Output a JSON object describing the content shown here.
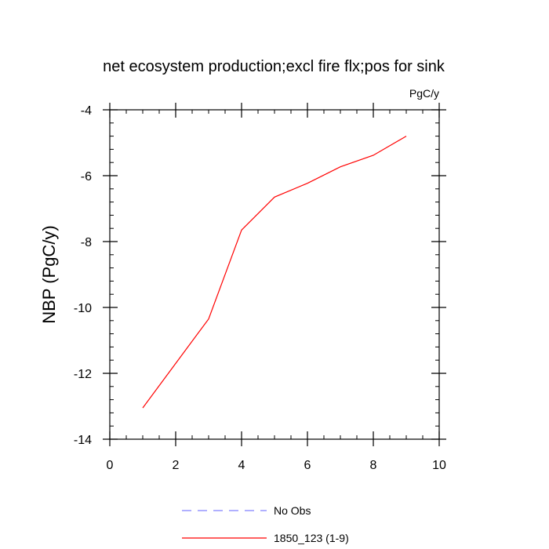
{
  "chart_data": {
    "type": "line",
    "title": "net ecosystem production;excl fire flx;pos for sink",
    "units_label": "PgC/y",
    "xlabel": "",
    "ylabel": "NBP  (PgC/y)",
    "xlim": [
      0,
      10
    ],
    "ylim": [
      -14,
      -4
    ],
    "x_ticks": [
      0,
      2,
      4,
      6,
      8,
      10
    ],
    "x_tick_labels": [
      "0",
      "2",
      "4",
      "6",
      "8",
      "10"
    ],
    "y_ticks": [
      -14,
      -12,
      -10,
      -8,
      -6,
      -4
    ],
    "y_tick_labels": [
      "-14",
      "-12",
      "-10",
      "-8",
      "-6",
      "-4"
    ],
    "x_minor_step": 0.5,
    "y_minor_step": 0.4,
    "grid": false,
    "legend_position": "bottom-center",
    "series": [
      {
        "name": "No Obs",
        "color": "#8080ff",
        "dash": "dashed",
        "x": [],
        "y": []
      },
      {
        "name": "1850_123 (1-9)",
        "color": "#ff0000",
        "dash": "solid",
        "x": [
          1,
          2,
          3,
          4,
          5,
          6,
          7,
          8,
          9
        ],
        "y": [
          -13.05,
          -11.7,
          -10.35,
          -7.65,
          -6.65,
          -6.23,
          -5.73,
          -5.38,
          -4.8
        ]
      }
    ]
  }
}
